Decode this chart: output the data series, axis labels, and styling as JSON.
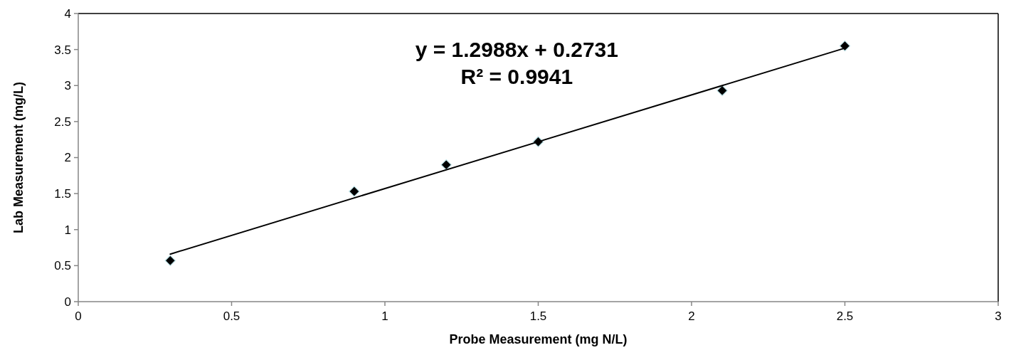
{
  "chart_data": {
    "type": "scatter",
    "xlabel": "Probe Measurement (mg N/L)",
    "ylabel": "Lab Measurement (mg/L)",
    "xlim": [
      0,
      3
    ],
    "xticks": [
      0,
      0.5,
      1,
      1.5,
      2,
      2.5,
      3
    ],
    "ylim": [
      0,
      4
    ],
    "yticks": [
      0,
      0.5,
      1,
      1.5,
      2,
      2.5,
      3,
      3.5,
      4
    ],
    "grid": false,
    "marker": "diamond",
    "annotations": [
      "y = 1.2988x + 0.2731",
      "R² = 0.9941"
    ],
    "series": [
      {
        "type": "scatter",
        "color": "#000000",
        "x": [
          0.3,
          0.9,
          1.2,
          1.5,
          2.1,
          2.5
        ],
        "values": [
          0.57,
          1.53,
          1.9,
          2.22,
          2.93,
          3.55
        ]
      },
      {
        "type": "line",
        "color": "#000000",
        "line_style": "solid",
        "marker": "none",
        "x": [
          0.3,
          2.5
        ],
        "values": [
          0.66,
          3.52
        ]
      }
    ]
  }
}
